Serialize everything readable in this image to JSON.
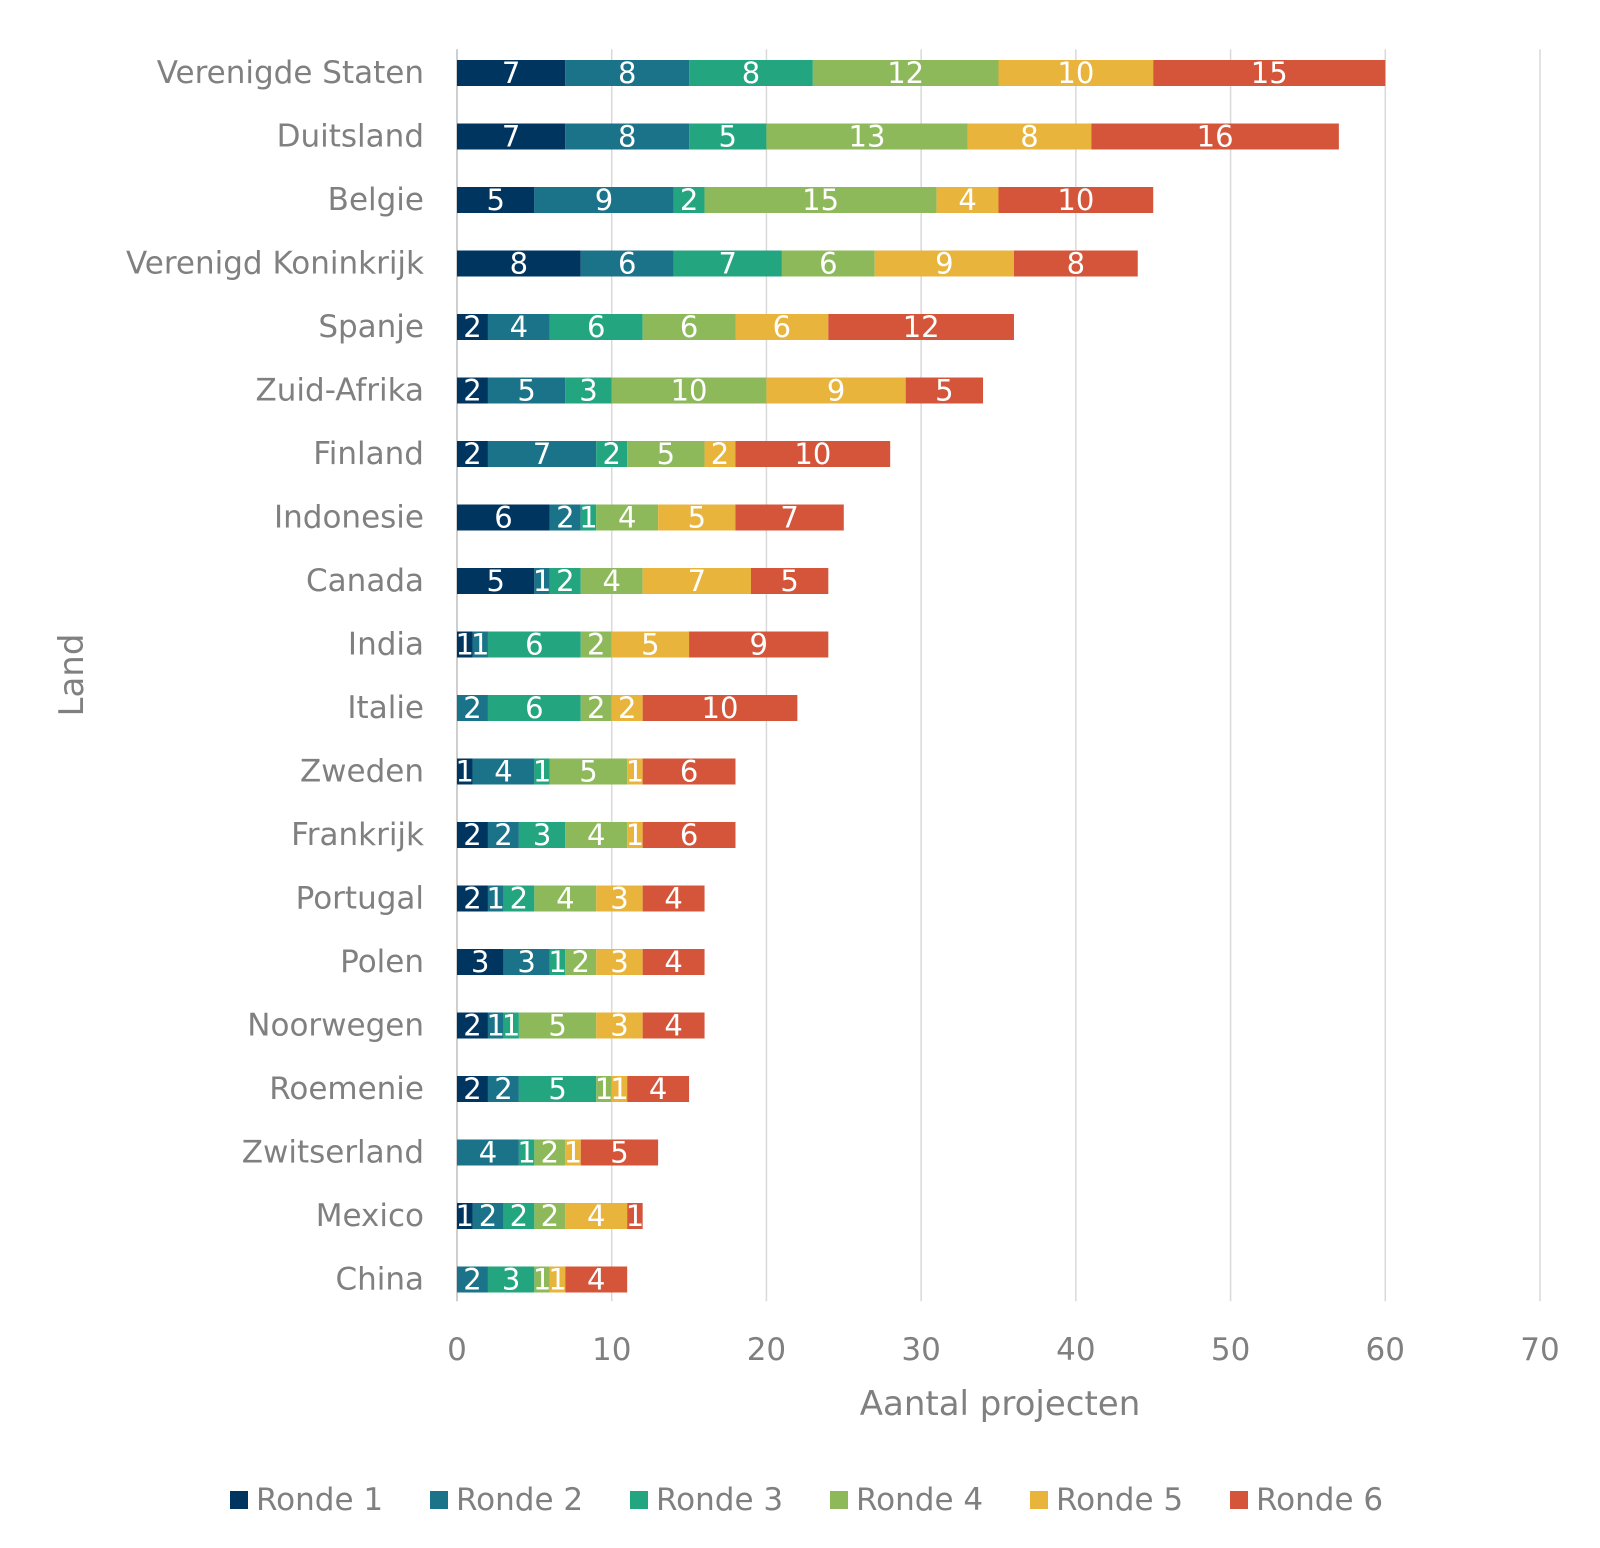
{
  "chart_data": {
    "type": "bar",
    "orientation": "horizontal",
    "stacked": true,
    "xlabel": "Aantal projecten",
    "ylabel": "Land",
    "xlim": [
      0,
      70
    ],
    "xticks": [
      0,
      10,
      20,
      30,
      40,
      50,
      60,
      70
    ],
    "grid": true,
    "legend_position": "bottom",
    "categories": [
      "Verenigde Staten",
      "Duitsland",
      "Belgie",
      "Verenigd Koninkrijk",
      "Spanje",
      "Zuid-Afrika",
      "Finland",
      "Indonesie",
      "Canada",
      "India",
      "Italie",
      "Zweden",
      "Frankrijk",
      "Portugal",
      "Polen",
      "Noorwegen",
      "Roemenie",
      "Zwitserland",
      "Mexico",
      "China"
    ],
    "series": [
      {
        "name": "Ronde 1",
        "color": "#003560",
        "values": [
          7,
          7,
          5,
          8,
          2,
          2,
          2,
          6,
          5,
          1,
          0,
          1,
          2,
          2,
          3,
          2,
          2,
          0,
          1,
          0
        ]
      },
      {
        "name": "Ronde 2",
        "color": "#1a7389",
        "values": [
          8,
          8,
          9,
          6,
          4,
          5,
          7,
          2,
          1,
          1,
          2,
          4,
          2,
          1,
          3,
          1,
          2,
          4,
          2,
          2
        ]
      },
      {
        "name": "Ronde 3",
        "color": "#23a67f",
        "values": [
          8,
          5,
          2,
          7,
          6,
          3,
          2,
          1,
          2,
          6,
          6,
          1,
          3,
          2,
          1,
          1,
          5,
          1,
          2,
          3
        ]
      },
      {
        "name": "Ronde 4",
        "color": "#8db95a",
        "values": [
          12,
          13,
          15,
          6,
          6,
          10,
          5,
          4,
          4,
          2,
          2,
          5,
          4,
          4,
          2,
          5,
          1,
          2,
          2,
          1
        ]
      },
      {
        "name": "Ronde 5",
        "color": "#e8b43c",
        "values": [
          10,
          8,
          4,
          9,
          6,
          9,
          2,
          5,
          7,
          5,
          2,
          1,
          1,
          3,
          3,
          3,
          1,
          1,
          4,
          1
        ]
      },
      {
        "name": "Ronde 6",
        "color": "#d4553a",
        "values": [
          15,
          16,
          10,
          8,
          12,
          5,
          10,
          7,
          5,
          9,
          10,
          6,
          6,
          4,
          4,
          4,
          4,
          5,
          1,
          4
        ]
      }
    ]
  }
}
